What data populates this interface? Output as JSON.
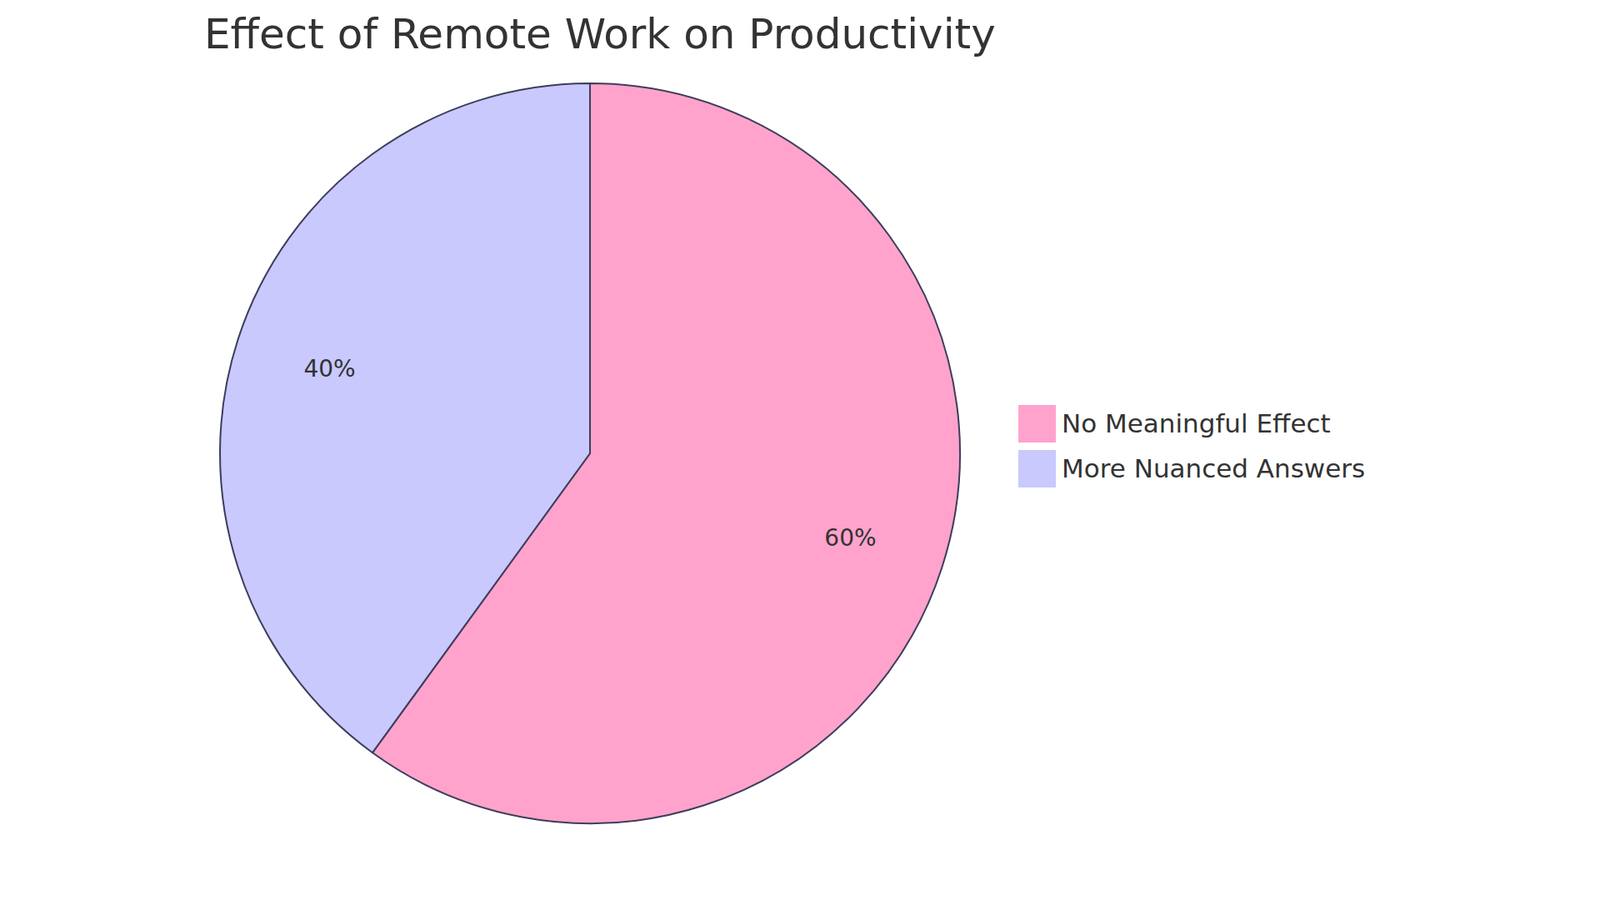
{
  "chart_data": {
    "type": "pie",
    "title": "Effect of Remote Work on Productivity",
    "categories": [
      "No Meaningful Effect",
      "More Nuanced Answers"
    ],
    "values": [
      60,
      40
    ],
    "value_labels": [
      "60%",
      "40%"
    ],
    "colors": [
      "#ffa3cc",
      "#c9c9fe"
    ],
    "data_labels": true,
    "legend": "right"
  }
}
